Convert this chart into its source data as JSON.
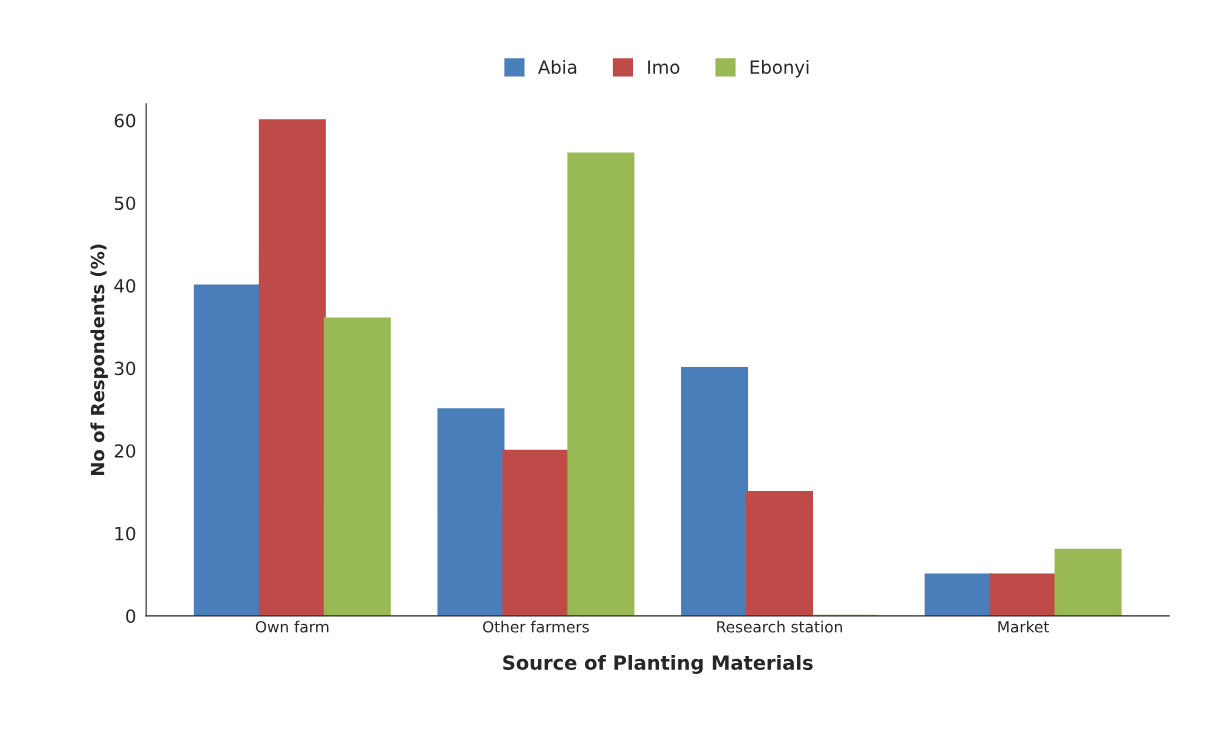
{
  "chart_data": {
    "type": "bar",
    "xlabel": "Source of Planting Materials",
    "ylabel": "No of Respondents (%)",
    "categories": [
      "Own farm",
      "Other farmers",
      "Research station",
      "Market"
    ],
    "series": [
      {
        "name": "Abia",
        "color": "#4a7ebb",
        "values": [
          40,
          25,
          30,
          5
        ]
      },
      {
        "name": "Imo",
        "color": "#be4b48",
        "values": [
          60,
          20,
          15,
          5
        ]
      },
      {
        "name": "Ebonyi",
        "color": "#98b954",
        "values": [
          36,
          56,
          0,
          8
        ]
      }
    ],
    "ylim": [
      0,
      62
    ],
    "yticks": [
      0,
      10,
      20,
      30,
      40,
      50,
      60
    ],
    "grid": false,
    "legend": "top"
  }
}
